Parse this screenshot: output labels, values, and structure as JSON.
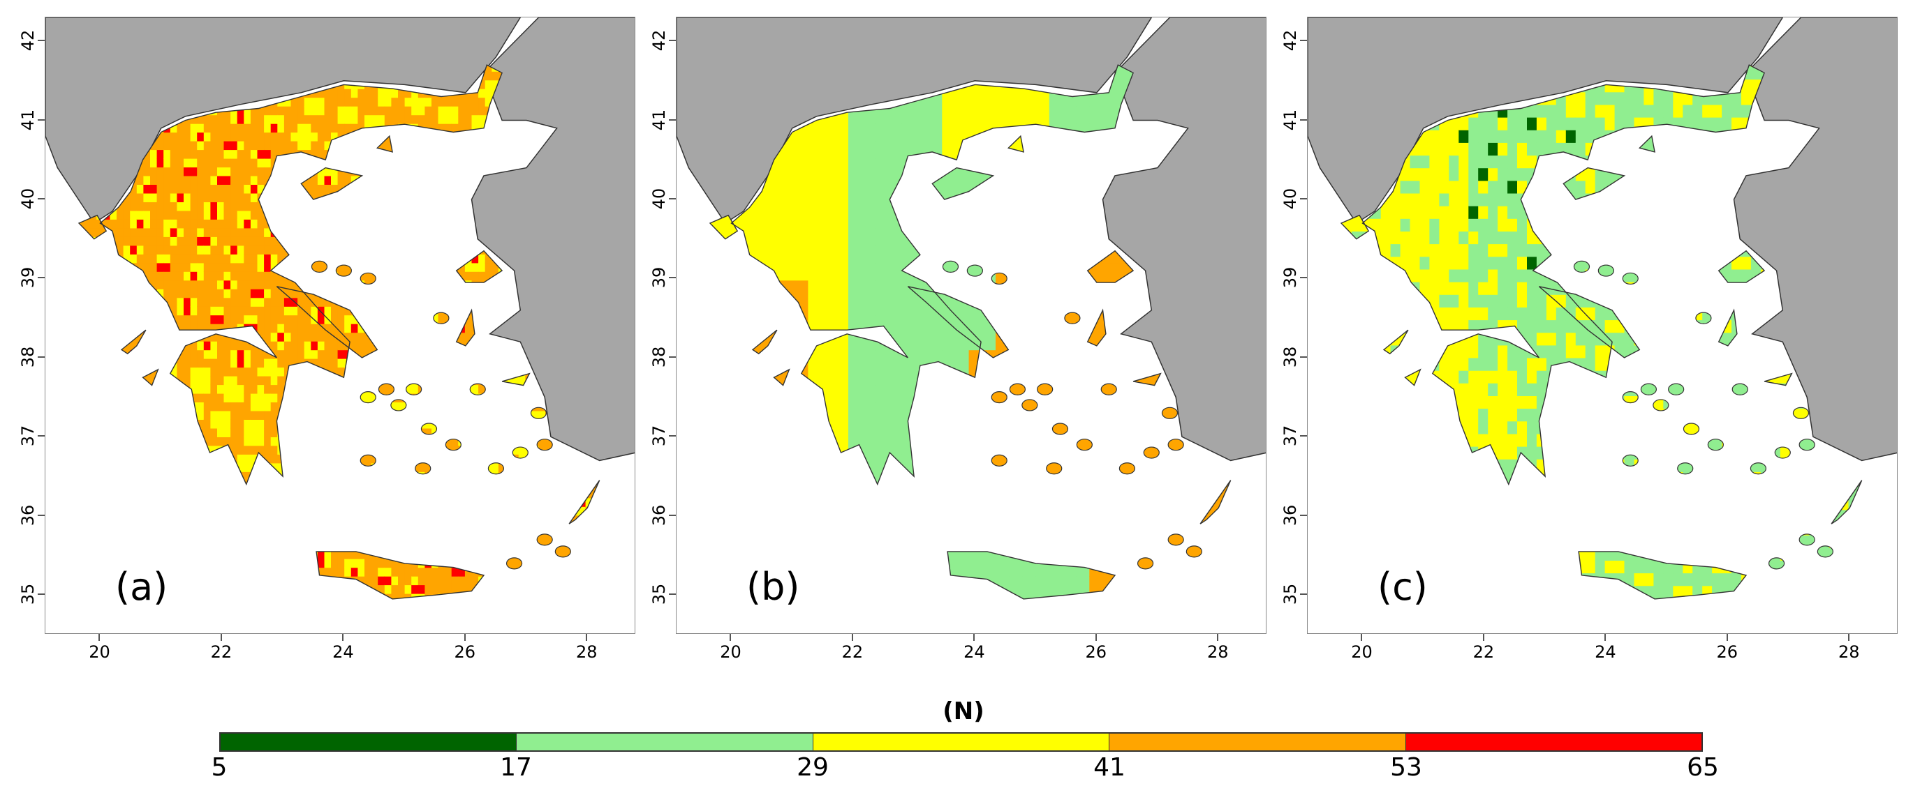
{
  "panels": [
    {
      "label": "(a)",
      "scheme": "a"
    },
    {
      "label": "(b)",
      "scheme": "b"
    },
    {
      "label": "(c)",
      "scheme": "c"
    }
  ],
  "axes": {
    "x_ticks": [
      "20",
      "22",
      "24",
      "26",
      "28"
    ],
    "y_ticks": [
      "42",
      "41",
      "40",
      "39",
      "38",
      "37",
      "36",
      "35"
    ]
  },
  "colorbar": {
    "title": "(N)",
    "ticks": [
      "5",
      "17",
      "29",
      "41",
      "53",
      "65"
    ],
    "colors": [
      "#006400",
      "#90ee90",
      "#ffff00",
      "#ffa500",
      "#ff0000"
    ]
  },
  "colors": {
    "land_other": "#a6a6a6",
    "sea": "#ffffff",
    "outline": "#333333"
  }
}
